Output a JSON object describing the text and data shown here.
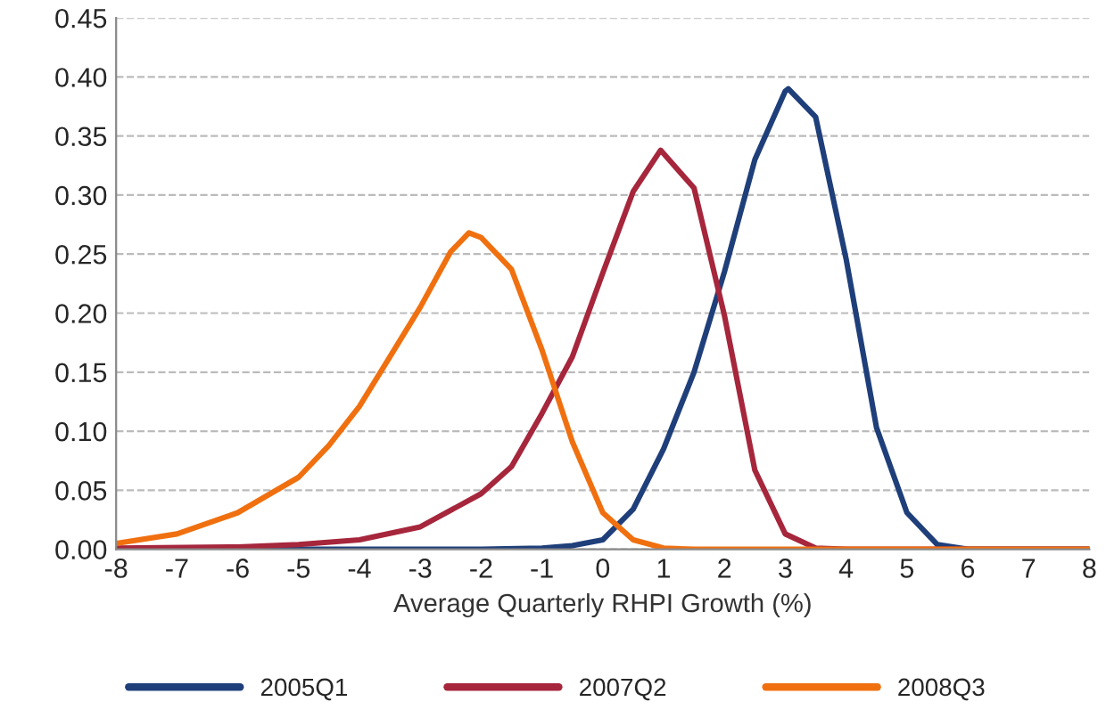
{
  "chart_data": {
    "type": "line",
    "xlabel": "Average Quarterly RHPI Growth (%)",
    "xlim": [
      -8,
      8
    ],
    "xticks": [
      -8,
      -7,
      -6,
      -5,
      -4,
      -3,
      -2,
      -1,
      0,
      1,
      2,
      3,
      4,
      5,
      6,
      7,
      8
    ],
    "ylim": [
      0,
      0.45
    ],
    "yticks": [
      {
        "value": 0,
        "label": "0.00"
      },
      {
        "value": 0.05,
        "label": "0.05"
      },
      {
        "value": 0.1,
        "label": "0.10"
      },
      {
        "value": 0.15,
        "label": "0.15"
      },
      {
        "value": 0.2,
        "label": "0.20"
      },
      {
        "value": 0.25,
        "label": "0.25"
      },
      {
        "value": 0.3,
        "label": "0.30"
      },
      {
        "value": 0.35,
        "label": "0.35"
      },
      {
        "value": 0.4,
        "label": "0.40"
      },
      {
        "value": 0.45,
        "label": "0.45"
      }
    ],
    "grid": "y",
    "legend": "bottom",
    "marker": "none",
    "line_style": "solid",
    "series": [
      {
        "name": "2005Q1",
        "color": "#1f3f7a",
        "x": [
          -8,
          -6,
          -4,
          -2,
          -1,
          -0.5,
          0,
          0.5,
          1,
          1.5,
          2,
          2.5,
          3,
          3.05,
          3.5,
          4,
          4.5,
          5,
          5.5,
          6,
          7,
          8
        ],
        "values": [
          0,
          0,
          0,
          0,
          0.001,
          0.003,
          0.008,
          0.034,
          0.085,
          0.15,
          0.235,
          0.33,
          0.388,
          0.39,
          0.366,
          0.246,
          0.103,
          0.031,
          0.004,
          0,
          0,
          0
        ]
      },
      {
        "name": "2007Q2",
        "color": "#a6263c",
        "x": [
          -8,
          -6,
          -5,
          -4,
          -3,
          -2,
          -1.5,
          -1,
          -0.5,
          0,
          0.5,
          0.95,
          1.5,
          2,
          2.5,
          3,
          3.5,
          4,
          6,
          8
        ],
        "values": [
          0.001,
          0.002,
          0.004,
          0.008,
          0.019,
          0.047,
          0.07,
          0.115,
          0.163,
          0.234,
          0.303,
          0.338,
          0.306,
          0.198,
          0.067,
          0.013,
          0.001,
          0,
          0,
          0
        ]
      },
      {
        "name": "2008Q3",
        "color": "#f07010",
        "x": [
          -8,
          -7,
          -6,
          -5,
          -4.5,
          -4,
          -3.5,
          -3,
          -2.5,
          -2.2,
          -2,
          -1.5,
          -1,
          -0.5,
          0,
          0.5,
          1,
          1.5,
          3,
          5,
          8
        ],
        "values": [
          0.005,
          0.013,
          0.031,
          0.061,
          0.088,
          0.121,
          0.163,
          0.205,
          0.252,
          0.268,
          0.264,
          0.237,
          0.169,
          0.091,
          0.031,
          0.008,
          0.001,
          0,
          0,
          0,
          0
        ]
      }
    ]
  }
}
